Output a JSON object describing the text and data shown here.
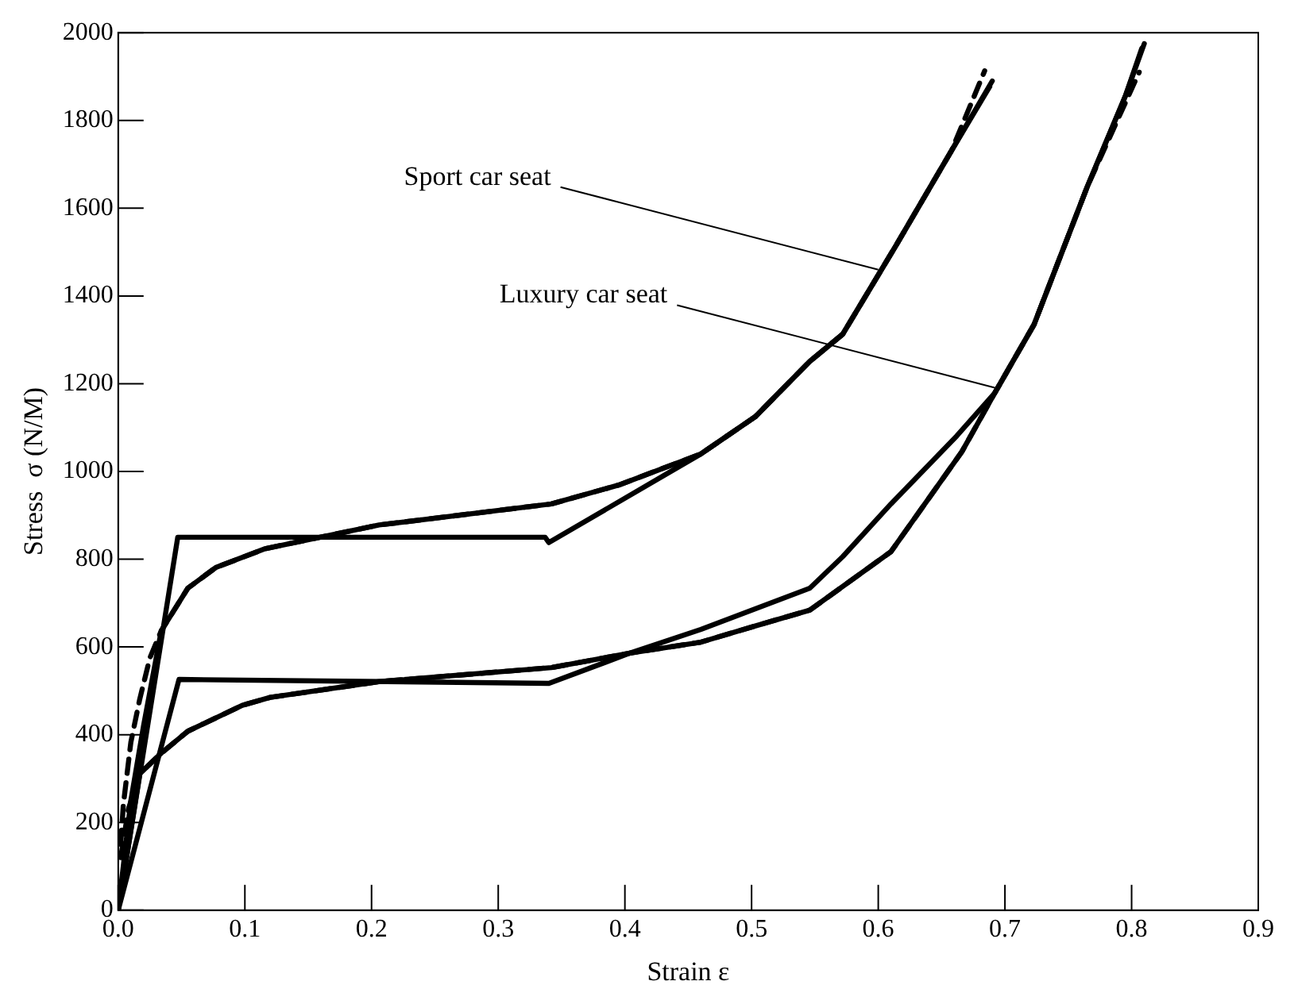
{
  "chart_data": {
    "type": "line",
    "xlabel": "Strain ε",
    "ylabel": "Stress  σ (N/M)",
    "xlim": [
      0,
      0.9
    ],
    "xticks": [
      {
        "value": 0,
        "label": "0.0"
      },
      0.1,
      0.2,
      0.3,
      0.4,
      0.5,
      0.6,
      0.7,
      0.8,
      0.9
    ],
    "ylim": [
      0,
      2000
    ],
    "yticks": [
      0,
      200,
      400,
      600,
      800,
      1000,
      1200,
      1400,
      1600,
      1800,
      2000
    ],
    "grid": false,
    "legend": false,
    "marker": "none",
    "series": [
      {
        "color": "#000000",
        "line_style": "solid",
        "x": [
          0,
          0.047,
          0.337,
          0.34,
          0.46,
          0.503,
          0.546,
          0.572,
          0.614,
          0.658,
          0.688
        ],
        "values": [
          0,
          850,
          850,
          838,
          1040,
          1125,
          1251,
          1313,
          1515,
          1732,
          1877
        ]
      },
      {
        "color": "#000000",
        "line_style": "solid",
        "x": [
          0,
          0.01,
          0.02,
          0.034,
          0.055,
          0.077,
          0.116,
          0.206,
          0.342,
          0.395,
          0.46,
          0.503,
          0.546,
          0.572,
          0.614,
          0.658,
          0.69
        ],
        "values": [
          0,
          250,
          420,
          637,
          734,
          781,
          824,
          878,
          926,
          969,
          1040,
          1125,
          1251,
          1313,
          1515,
          1732,
          1890
        ]
      },
      {
        "color": "#000000",
        "line_style": "dashed",
        "x": [
          0.002,
          0.004,
          0.01,
          0.017,
          0.025,
          0.034,
          0.055,
          0.077,
          0.116,
          0.206,
          0.342,
          0.395,
          0.46,
          0.503,
          0.546,
          0.572,
          0.614,
          0.658,
          0.684
        ],
        "values": [
          150,
          239,
          383,
          481,
          575,
          637,
          734,
          781,
          824,
          878,
          926,
          969,
          1040,
          1125,
          1251,
          1313,
          1515,
          1732,
          1913
        ]
      },
      {
        "color": "#000000",
        "line_style": "solid",
        "x": [
          0,
          0.048,
          0.34,
          0.404,
          0.46,
          0.546,
          0.572,
          0.61,
          0.662,
          0.692,
          0.723,
          0.765,
          0.795,
          0.808
        ],
        "values": [
          0,
          526,
          517,
          586,
          640,
          734,
          806,
          926,
          1081,
          1179,
          1335,
          1649,
          1855,
          1964
        ]
      },
      {
        "color": "#000000",
        "line_style": "solid",
        "x": [
          0,
          0.017,
          0.034,
          0.055,
          0.098,
          0.12,
          0.206,
          0.342,
          0.404,
          0.46,
          0.503,
          0.546,
          0.61,
          0.666,
          0.692,
          0.723,
          0.765,
          0.795,
          0.81
        ],
        "values": [
          0,
          311,
          358,
          408,
          467,
          485,
          521,
          553,
          586,
          611,
          648,
          684,
          817,
          1045,
          1179,
          1335,
          1649,
          1855,
          1975
        ]
      },
      {
        "color": "#000000",
        "line_style": "dashed",
        "x": [
          0.002,
          0.008,
          0.017,
          0.034,
          0.055,
          0.098,
          0.12,
          0.206,
          0.342,
          0.404,
          0.46,
          0.503,
          0.546,
          0.61,
          0.666,
          0.692,
          0.723,
          0.765,
          0.806
        ],
        "values": [
          120,
          230,
          311,
          358,
          408,
          467,
          485,
          521,
          553,
          586,
          611,
          648,
          684,
          817,
          1045,
          1179,
          1335,
          1649,
          1910
        ]
      }
    ],
    "annotations": [
      {
        "text": "Sport car seat",
        "x": 0.6,
        "y": 1460
      },
      {
        "text": "Luxury car seat",
        "x": 0.692,
        "y": 1191
      }
    ]
  }
}
